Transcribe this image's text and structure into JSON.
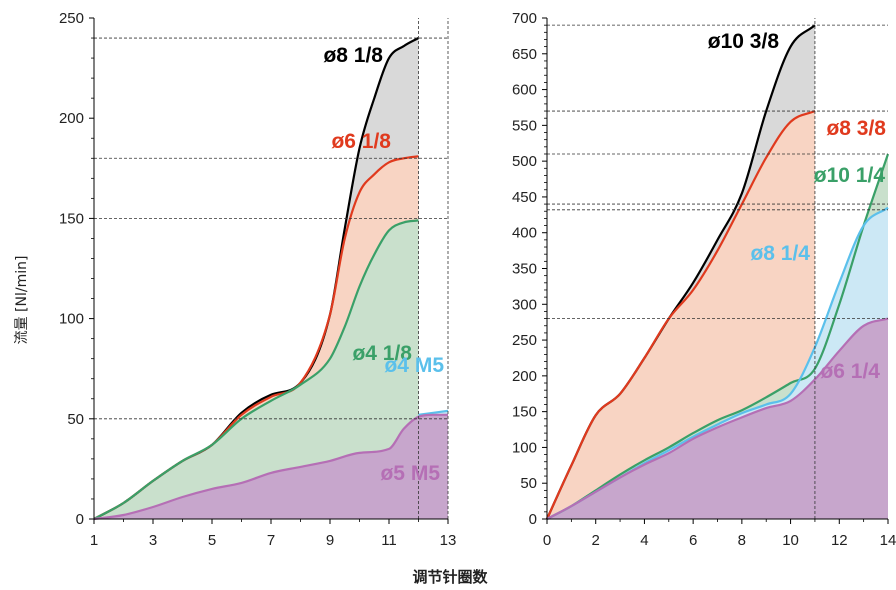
{
  "ylabel": "流量 [Nl/min]",
  "xlabel": "调节针圈数",
  "chart_data": [
    {
      "type": "area",
      "x_ticks": [
        1,
        3,
        5,
        7,
        9,
        11,
        13
      ],
      "y_ticks": [
        0,
        50,
        100,
        150,
        200,
        250
      ],
      "xlim": [
        1,
        13
      ],
      "ylim": [
        0,
        250
      ],
      "grid": "dashed reference lines at series maxima",
      "series": [
        {
          "name": "ø8 1/8",
          "color": "#000000",
          "fill": "#d9d9d9",
          "x": [
            1,
            2,
            3,
            4,
            5,
            6,
            7,
            8,
            9,
            9.5,
            10,
            10.5,
            11,
            11.5,
            12
          ],
          "y": [
            0,
            8,
            19,
            29,
            37,
            53,
            62,
            68,
            102,
            145,
            185,
            210,
            230,
            236,
            240
          ]
        },
        {
          "name": "ø6 1/8",
          "color": "#e03a1e",
          "fill": "#f8d4c3",
          "x": [
            1,
            2,
            3,
            4,
            5,
            6,
            7,
            8,
            9,
            9.5,
            10,
            10.5,
            11,
            11.5,
            12
          ],
          "y": [
            0,
            8,
            19,
            29,
            37,
            52,
            61,
            68,
            102,
            140,
            163,
            172,
            178,
            180,
            181
          ]
        },
        {
          "name": "ø4 1/8",
          "color": "#3aa068",
          "fill": "#c9e0cc",
          "x": [
            1,
            2,
            3,
            4,
            5,
            6,
            7,
            8,
            9,
            9.5,
            10,
            10.5,
            11,
            11.5,
            12
          ],
          "y": [
            0,
            8,
            19,
            29,
            37,
            50,
            59,
            67,
            80,
            96,
            116,
            132,
            144,
            148,
            149
          ]
        },
        {
          "name": "ø4 M5",
          "color": "#5bc0eb",
          "fill": "#cce8f5",
          "x": [
            12,
            12.5,
            13
          ],
          "y": [
            52,
            53,
            54
          ]
        },
        {
          "name": "ø5 M5",
          "color": "#b56fb5",
          "fill": "#c7a6cc",
          "x": [
            1,
            2,
            3,
            4,
            5,
            6,
            7,
            8,
            9,
            10,
            11,
            11.5,
            12,
            12.5,
            13
          ],
          "y": [
            0,
            2,
            6,
            11,
            15,
            18,
            23,
            26,
            29,
            33,
            35,
            45,
            51,
            52,
            52
          ]
        }
      ],
      "ref_hlines": [
        240,
        180,
        150,
        50
      ],
      "ref_vlines": [
        12,
        13
      ]
    },
    {
      "type": "area",
      "x_ticks": [
        0,
        2,
        4,
        6,
        8,
        10,
        12,
        14
      ],
      "y_ticks": [
        0,
        50,
        100,
        150,
        200,
        250,
        300,
        350,
        400,
        450,
        500,
        550,
        600,
        650,
        700
      ],
      "xlim": [
        0,
        14
      ],
      "ylim": [
        0,
        700
      ],
      "grid": "dashed reference lines at series maxima",
      "series": [
        {
          "name": "ø10 3/8",
          "color": "#000000",
          "fill": "#d9d9d9",
          "x": [
            0,
            1,
            2,
            3,
            4,
            5,
            6,
            7,
            8,
            9,
            10,
            11
          ],
          "y": [
            0,
            75,
            145,
            175,
            225,
            280,
            330,
            390,
            455,
            570,
            660,
            690
          ]
        },
        {
          "name": "ø8 3/8",
          "color": "#e03a1e",
          "fill": "#f8d4c3",
          "x": [
            0,
            1,
            2,
            3,
            4,
            5,
            6,
            7,
            8,
            9,
            10,
            11
          ],
          "y": [
            0,
            75,
            145,
            175,
            225,
            280,
            320,
            375,
            440,
            505,
            555,
            570
          ]
        },
        {
          "name": "ø10 1/4",
          "color": "#3aa068",
          "fill": "#c9e0cc",
          "x": [
            0,
            1,
            2,
            3,
            4,
            5,
            6,
            7,
            8,
            9,
            10,
            11,
            12,
            13,
            14
          ],
          "y": [
            0,
            18,
            40,
            62,
            82,
            100,
            120,
            138,
            152,
            170,
            190,
            210,
            300,
            410,
            510
          ]
        },
        {
          "name": "ø8 1/4",
          "color": "#5bc0eb",
          "fill": "#cce8f5",
          "x": [
            0,
            1,
            2,
            3,
            4,
            5,
            6,
            7,
            8,
            9,
            10,
            11,
            12,
            13,
            14
          ],
          "y": [
            0,
            18,
            38,
            58,
            78,
            96,
            115,
            132,
            148,
            160,
            175,
            240,
            330,
            410,
            435
          ]
        },
        {
          "name": "ø6 1/4",
          "color": "#b56fb5",
          "fill": "#c7a6cc",
          "x": [
            0,
            1,
            2,
            3,
            4,
            5,
            6,
            7,
            8,
            9,
            10,
            11,
            12,
            13,
            14
          ],
          "y": [
            0,
            18,
            38,
            58,
            76,
            92,
            112,
            128,
            142,
            155,
            165,
            195,
            235,
            270,
            280
          ]
        }
      ],
      "ref_hlines": [
        690,
        570,
        510,
        440,
        432,
        280
      ],
      "ref_vlines": [
        11
      ]
    }
  ]
}
